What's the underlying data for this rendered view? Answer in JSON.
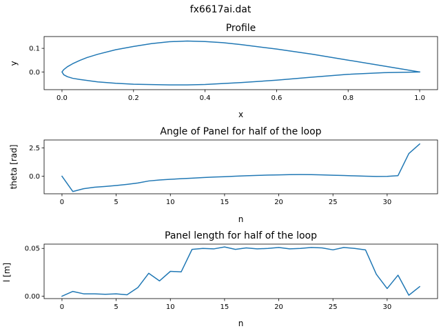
{
  "figure": {
    "suptitle": "fx6617ai.dat"
  },
  "chart_data": [
    {
      "type": "line",
      "title": "Profile",
      "xlabel": "x",
      "ylabel": "y",
      "xlim": [
        -0.05,
        1.05
      ],
      "ylim": [
        -0.075,
        0.15
      ],
      "xticks": [
        0.0,
        0.2,
        0.4,
        0.6,
        0.8,
        1.0
      ],
      "xtick_labels": [
        "0.0",
        "0.2",
        "0.4",
        "0.6",
        "0.8",
        "1.0"
      ],
      "yticks": [
        0.0,
        0.1
      ],
      "ytick_labels": [
        "0.0",
        "0.1"
      ],
      "grid": false,
      "color": "#1f77b4",
      "series": [
        {
          "x": [
            1.0,
            0.9,
            0.8,
            0.7,
            0.6,
            0.5,
            0.45,
            0.4,
            0.35,
            0.3,
            0.25,
            0.2,
            0.15,
            0.1,
            0.07,
            0.05,
            0.03,
            0.015,
            0.005,
            0.0,
            0.005,
            0.015,
            0.03,
            0.05,
            0.08,
            0.1,
            0.15,
            0.2,
            0.3,
            0.35,
            0.4,
            0.5,
            0.6,
            0.7,
            0.8,
            0.9,
            1.0
          ],
          "y": [
            0.0,
            0.025,
            0.05,
            0.075,
            0.097,
            0.116,
            0.124,
            0.129,
            0.131,
            0.128,
            0.12,
            0.108,
            0.094,
            0.075,
            0.061,
            0.049,
            0.035,
            0.022,
            0.01,
            0.0,
            -0.012,
            -0.02,
            -0.027,
            -0.032,
            -0.038,
            -0.042,
            -0.048,
            -0.052,
            -0.055,
            -0.055,
            -0.053,
            -0.045,
            -0.035,
            -0.022,
            -0.01,
            -0.003,
            0.0
          ]
        }
      ]
    },
    {
      "type": "line",
      "title": "Angle of Panel for half of the loop",
      "xlabel": "n",
      "ylabel": "theta [rad]",
      "xlim": [
        -1.65,
        34.65
      ],
      "ylim": [
        -1.55,
        3.2
      ],
      "xticks": [
        0,
        5,
        10,
        15,
        20,
        25,
        30
      ],
      "xtick_labels": [
        "0",
        "5",
        "10",
        "15",
        "20",
        "25",
        "30"
      ],
      "yticks": [
        0.0,
        2.5
      ],
      "ytick_labels": [
        "0.0",
        "2.5"
      ],
      "grid": false,
      "color": "#1f77b4",
      "series": [
        {
          "x": [
            0,
            1,
            2,
            3,
            4,
            5,
            6,
            7,
            8,
            9,
            10,
            11,
            12,
            13,
            14,
            15,
            16,
            17,
            18,
            19,
            20,
            21,
            22,
            23,
            24,
            25,
            26,
            27,
            28,
            29,
            30,
            31,
            32,
            33
          ],
          "y": [
            0.0,
            -1.35,
            -1.1,
            -0.97,
            -0.9,
            -0.82,
            -0.72,
            -0.6,
            -0.42,
            -0.33,
            -0.27,
            -0.22,
            -0.17,
            -0.12,
            -0.07,
            -0.04,
            0.0,
            0.04,
            0.07,
            0.1,
            0.12,
            0.14,
            0.15,
            0.14,
            0.12,
            0.09,
            0.06,
            0.03,
            0.0,
            -0.02,
            -0.01,
            0.05,
            2.0,
            2.85
          ]
        }
      ]
    },
    {
      "type": "line",
      "title": "Panel length for half of the loop",
      "xlabel": "n",
      "ylabel": "l [m]",
      "xlim": [
        -1.65,
        34.65
      ],
      "ylim": [
        -0.0025,
        0.0545
      ],
      "xticks": [
        0,
        5,
        10,
        15,
        20,
        25,
        30
      ],
      "xtick_labels": [
        "0",
        "5",
        "10",
        "15",
        "20",
        "25",
        "30"
      ],
      "yticks": [
        0.0,
        0.05
      ],
      "ytick_labels": [
        "0.00",
        "0.05"
      ],
      "grid": false,
      "color": "#1f77b4",
      "series": [
        {
          "x": [
            0,
            1,
            2,
            3,
            4,
            5,
            6,
            7,
            8,
            9,
            10,
            11,
            12,
            13,
            14,
            15,
            16,
            17,
            18,
            19,
            20,
            21,
            22,
            23,
            24,
            25,
            26,
            27,
            28,
            29,
            30,
            31,
            32,
            33
          ],
          "y": [
            0.0,
            0.005,
            0.0025,
            0.0025,
            0.002,
            0.0025,
            0.0015,
            0.009,
            0.024,
            0.016,
            0.026,
            0.0255,
            0.049,
            0.05,
            0.0495,
            0.0515,
            0.049,
            0.0505,
            0.0495,
            0.05,
            0.051,
            0.0495,
            0.05,
            0.051,
            0.0505,
            0.0485,
            0.051,
            0.05,
            0.0485,
            0.023,
            0.008,
            0.022,
            0.001,
            0.01
          ]
        }
      ]
    }
  ]
}
